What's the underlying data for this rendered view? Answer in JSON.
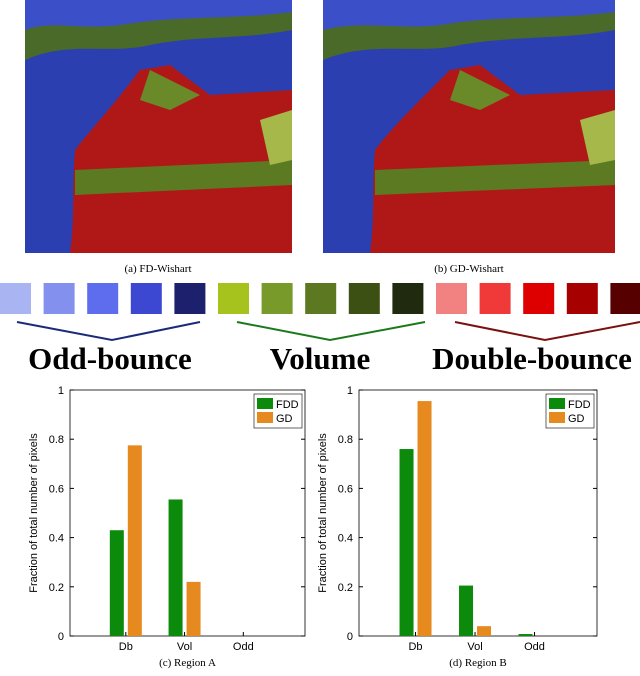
{
  "images": [
    {
      "caption": "(a) FD-Wishart"
    },
    {
      "caption": "(b) GD-Wishart"
    }
  ],
  "scattering_legend": [
    {
      "label": "Odd-bounce",
      "color": "#1c2a7a",
      "swatches": [
        "#a9b5f2",
        "#8390ee",
        "#5e6cee",
        "#3c47d2",
        "#1d206c"
      ]
    },
    {
      "label": "Volume",
      "color": "#1a7a1a",
      "swatches": [
        "#a6c21c",
        "#789a2a",
        "#5c7820",
        "#3c5014",
        "#1f2a0e"
      ]
    },
    {
      "label": "Double-bounce",
      "color": "#7a1010",
      "swatches": [
        "#f28282",
        "#f03a3a",
        "#de0000",
        "#a60000",
        "#560000"
      ]
    }
  ],
  "chart_data": [
    {
      "type": "bar",
      "caption": "(c) Region A",
      "ylabel": "Fraction of total number of pixels",
      "categories": [
        "Db",
        "Vol",
        "Odd"
      ],
      "series": [
        {
          "name": "FDD",
          "color": "#0b8a0b",
          "values": [
            0.43,
            0.555,
            0
          ]
        },
        {
          "name": "GD",
          "color": "#e6891e",
          "values": [
            0.775,
            0.22,
            0
          ]
        }
      ],
      "ylim": [
        0,
        1
      ],
      "yticks": [
        0,
        0.2,
        0.4,
        0.6,
        0.8,
        1
      ],
      "legend": "top-right"
    },
    {
      "type": "bar",
      "caption": "(d) Region B",
      "ylabel": "Fraction of total number of pixels",
      "categories": [
        "Db",
        "Vol",
        "Odd"
      ],
      "series": [
        {
          "name": "FDD",
          "color": "#0b8a0b",
          "values": [
            0.76,
            0.205,
            0.008
          ]
        },
        {
          "name": "GD",
          "color": "#e6891e",
          "values": [
            0.955,
            0.04,
            0
          ]
        }
      ],
      "ylim": [
        0,
        1
      ],
      "yticks": [
        0,
        0.2,
        0.4,
        0.6,
        0.8,
        1
      ],
      "legend": "top-right"
    }
  ]
}
